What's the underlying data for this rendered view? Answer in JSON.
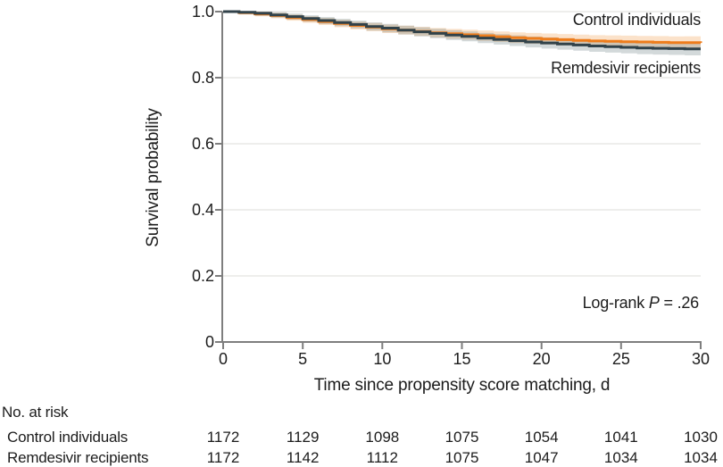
{
  "chart_data": {
    "type": "line",
    "subtype": "kaplan-meier-step",
    "title": "",
    "xlabel": "Time since propensity score matching, d",
    "ylabel": "Survival probability",
    "xlim": [
      0,
      30
    ],
    "ylim": [
      0,
      1
    ],
    "grid": "horizontal",
    "xticks": [
      {
        "label": "0",
        "value": 0
      },
      {
        "label": "5",
        "value": 5
      },
      {
        "label": "10",
        "value": 10
      },
      {
        "label": "15",
        "value": 15
      },
      {
        "label": "20",
        "value": 20
      },
      {
        "label": "25",
        "value": 25
      },
      {
        "label": "30",
        "value": 30
      }
    ],
    "yticks": [
      {
        "label": "1.0",
        "value": 1.0
      },
      {
        "label": "0.8",
        "value": 0.8
      },
      {
        "label": "0.6",
        "value": 0.6
      },
      {
        "label": "0.4",
        "value": 0.4
      },
      {
        "label": "0.2",
        "value": 0.2
      },
      {
        "label": "0",
        "value": 0
      }
    ],
    "x": [
      0,
      1,
      2,
      3,
      4,
      5,
      6,
      7,
      8,
      9,
      10,
      11,
      12,
      13,
      14,
      15,
      16,
      17,
      18,
      19,
      20,
      21,
      22,
      23,
      24,
      25,
      26,
      27,
      28,
      29,
      30
    ],
    "series": [
      {
        "name": "Control individuals",
        "color": "#EE7D1C",
        "ci_color": "#F2A65A",
        "ci_opacity": 0.32,
        "values": [
          1.0,
          0.997,
          0.993,
          0.988,
          0.982,
          0.976,
          0.97,
          0.964,
          0.958,
          0.953,
          0.948,
          0.944,
          0.94,
          0.936,
          0.933,
          0.93,
          0.927,
          0.924,
          0.921,
          0.919,
          0.917,
          0.915,
          0.913,
          0.911,
          0.91,
          0.909,
          0.908,
          0.907,
          0.906,
          0.906,
          0.905
        ]
      },
      {
        "name": "Remdesivir recipients",
        "color": "#31424A",
        "ci_color": "#6C8085",
        "ci_opacity": 0.3,
        "values": [
          1.0,
          0.998,
          0.995,
          0.99,
          0.985,
          0.979,
          0.973,
          0.967,
          0.961,
          0.955,
          0.95,
          0.944,
          0.939,
          0.934,
          0.929,
          0.925,
          0.92,
          0.916,
          0.912,
          0.908,
          0.905,
          0.902,
          0.899,
          0.896,
          0.894,
          0.892,
          0.89,
          0.889,
          0.888,
          0.887,
          0.887
        ]
      }
    ],
    "ci_halfwidth": [
      0.001,
      0.0061,
      0.0074,
      0.0084,
      0.0092,
      0.0099,
      0.0106,
      0.0112,
      0.0118,
      0.0123,
      0.0128,
      0.0133,
      0.0138,
      0.0142,
      0.0146,
      0.015,
      0.0154,
      0.0158,
      0.0161,
      0.0165,
      0.0168,
      0.0171,
      0.0174,
      0.0177,
      0.018,
      0.0183,
      0.0186,
      0.0189,
      0.0192,
      0.0194,
      0.0197
    ],
    "annotation": {
      "prefix": "Log-rank ",
      "p_symbol": "P",
      "suffix": " = .26"
    },
    "risk_table": {
      "header": "No. at risk",
      "rows": [
        {
          "label": "Control individuals",
          "values": [
            1172,
            1129,
            1098,
            1075,
            1054,
            1041,
            1030
          ]
        },
        {
          "label": "Remdesivir recipients",
          "values": [
            1172,
            1142,
            1112,
            1075,
            1047,
            1034,
            1034
          ]
        }
      ]
    },
    "colors": {
      "grid": "#E8E8E6",
      "axis": "#7E7E7E",
      "text": "#1C1C1C"
    }
  }
}
